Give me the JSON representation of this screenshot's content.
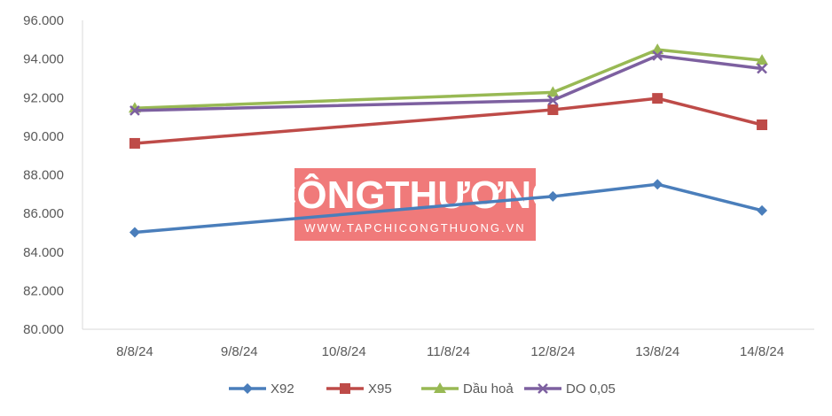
{
  "watermark": {
    "title": "CÔNGTHƯƠNG",
    "url": "WWW.TAPCHICONGTHUONG.VN",
    "color": "#f07a7a"
  },
  "chart_data": {
    "type": "line",
    "categories": [
      "8/8/24",
      "9/8/24",
      "10/8/24",
      "11/8/24",
      "12/8/24",
      "13/8/24",
      "14/8/24"
    ],
    "ylim": [
      80000,
      96000
    ],
    "yticks": [
      "80.000",
      "82.000",
      "84.000",
      "86.000",
      "88.000",
      "90.000",
      "92.000",
      "94.000",
      "96.000"
    ],
    "ytick_values": [
      80000,
      82000,
      84000,
      86000,
      88000,
      90000,
      92000,
      94000,
      96000
    ],
    "grid": false,
    "legend": "bottom",
    "series": [
      {
        "name": "X92",
        "color": "#4a7ebb",
        "marker": "diamond",
        "points": [
          [
            0,
            85020
          ],
          [
            4,
            86880
          ],
          [
            5,
            87510
          ],
          [
            6,
            86150
          ]
        ]
      },
      {
        "name": "X95",
        "color": "#be4b48",
        "marker": "square",
        "points": [
          [
            0,
            89630
          ],
          [
            4,
            91370
          ],
          [
            5,
            91960
          ],
          [
            6,
            90590
          ]
        ]
      },
      {
        "name": "Dầu hoả",
        "color": "#98b954",
        "marker": "triangle",
        "points": [
          [
            0,
            91450
          ],
          [
            4,
            92270
          ],
          [
            5,
            94480
          ],
          [
            6,
            93930
          ]
        ]
      },
      {
        "name": "DO 0,05",
        "color": "#7d60a0",
        "marker": "x",
        "points": [
          [
            0,
            91330
          ],
          [
            4,
            91860
          ],
          [
            5,
            94170
          ],
          [
            6,
            93500
          ]
        ]
      }
    ]
  }
}
